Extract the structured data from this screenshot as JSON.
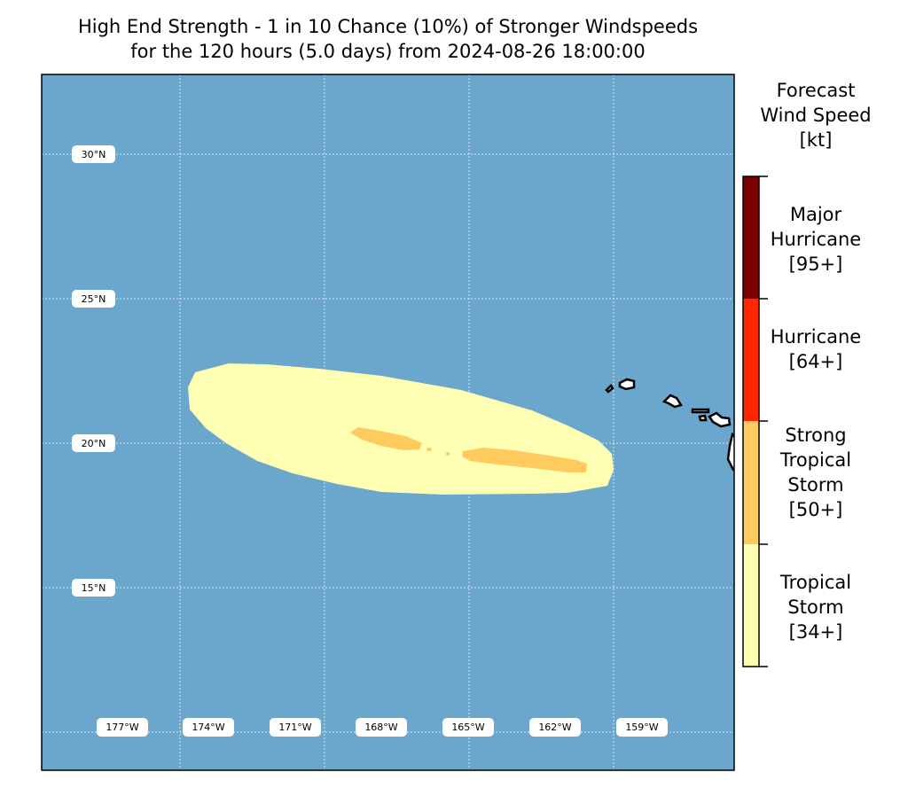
{
  "title": {
    "line1": "High End Strength - 1 in 10 Chance (10%) of Stronger Windspeeds",
    "line2": "for the 120 hours (5.0 days) from 2024-08-26 18:00:00"
  },
  "map": {
    "ocean_color": "#6ba6cc",
    "lat_labels": [
      "30°N",
      "25°N",
      "20°N",
      "15°N"
    ],
    "lon_labels": [
      "177°W",
      "174°W",
      "171°W",
      "168°W",
      "165°W",
      "162°W",
      "159°W"
    ]
  },
  "colorbar": {
    "title": [
      "Forecast",
      "Wind Speed",
      "[kt]"
    ],
    "categories": [
      {
        "lines": [
          "Major",
          "Hurricane",
          "[95+]"
        ],
        "color": "#7a0000"
      },
      {
        "lines": [
          "Hurricane",
          "[64+]"
        ],
        "color": "#ff2600"
      },
      {
        "lines": [
          "Strong",
          "Tropical",
          "Storm",
          "[50+]"
        ],
        "color": "#ffcb5e"
      },
      {
        "lines": [
          "Tropical",
          "Storm",
          "[34+]"
        ],
        "color": "#ffffb3"
      }
    ]
  }
}
